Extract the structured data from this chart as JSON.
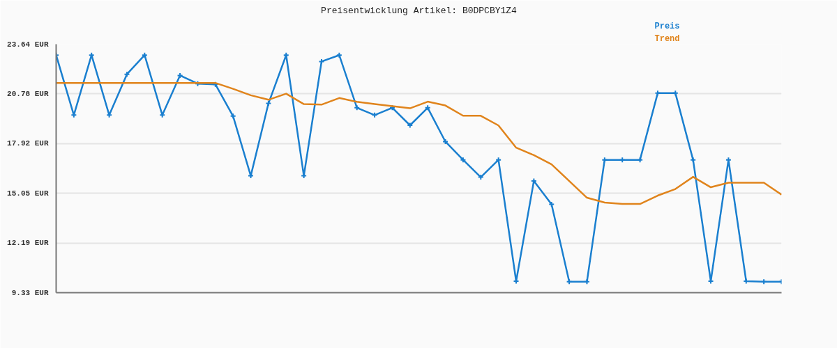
{
  "chart_data": {
    "type": "line",
    "title": "Preisentwicklung Artikel: B0DPCBY1Z4",
    "categories": [
      null,
      null,
      null,
      null,
      null,
      null,
      null,
      null,
      null,
      null,
      null,
      null,
      null,
      null,
      null,
      null,
      null,
      null,
      null,
      null,
      null,
      null,
      null,
      null,
      null,
      null,
      null,
      null,
      null,
      null,
      null,
      null,
      null,
      null,
      null,
      null,
      null,
      null,
      null,
      null,
      null,
      null
    ],
    "series": [
      {
        "name": "Preis",
        "color": "#1a7fcf",
        "marker": "cross",
        "values": [
          23.01,
          19.56,
          23.01,
          19.56,
          21.91,
          23.01,
          19.56,
          21.84,
          21.37,
          21.33,
          19.5,
          16.06,
          20.23,
          23.01,
          16.06,
          22.64,
          23.01,
          19.98,
          19.56,
          19.98,
          18.97,
          19.98,
          18.03,
          16.98,
          15.98,
          16.98,
          9.99,
          15.76,
          14.42,
          9.96,
          9.96,
          16.98,
          16.98,
          16.98,
          20.82,
          20.82,
          16.98,
          9.99,
          16.98,
          9.99,
          9.96,
          9.96
        ]
      },
      {
        "name": "Trend",
        "color": "#e0841c",
        "marker": "none",
        "values": [
          21.41,
          21.41,
          21.41,
          21.41,
          21.41,
          21.41,
          21.41,
          21.41,
          21.41,
          21.41,
          21.07,
          20.7,
          20.44,
          20.79,
          20.19,
          20.16,
          20.54,
          20.32,
          20.19,
          20.07,
          19.95,
          20.33,
          20.11,
          19.52,
          19.52,
          18.96,
          17.68,
          17.25,
          16.72,
          15.76,
          14.8,
          14.52,
          14.44,
          14.44,
          14.92,
          15.3,
          16.0,
          15.4,
          15.66,
          15.66,
          15.66,
          14.97
        ]
      }
    ],
    "ylim": [
      9.33,
      23.64
    ],
    "yticks": [
      {
        "value": 9.33,
        "label": "9.33 EUR"
      },
      {
        "value": 12.19,
        "label": "12.19 EUR"
      },
      {
        "value": 15.05,
        "label": "15.05 EUR"
      },
      {
        "value": 17.92,
        "label": "17.92 EUR"
      },
      {
        "value": 20.78,
        "label": "20.78 EUR"
      },
      {
        "value": 23.64,
        "label": "23.64 EUR"
      }
    ],
    "grid": "y",
    "tick_labels": "y",
    "line_style": "solid"
  }
}
